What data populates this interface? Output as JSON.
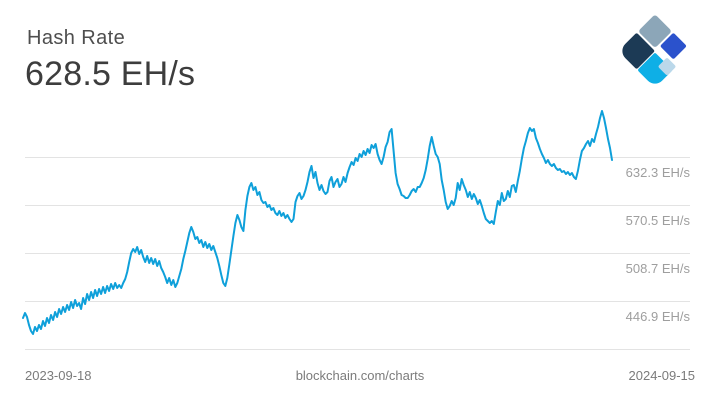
{
  "header": {
    "title": "Hash Rate",
    "value": "628.5 EH/s"
  },
  "logo": {
    "label": "blockchain-com-logo",
    "tiles": [
      {
        "key": "slate",
        "color": "#8CA6B8"
      },
      {
        "key": "royal",
        "color": "#2B52CC"
      },
      {
        "key": "navy",
        "color": "#1C3A55"
      },
      {
        "key": "cyan",
        "color": "#0EAFE6"
      },
      {
        "key": "pale",
        "color": "#BBD8EA"
      }
    ]
  },
  "footer": {
    "start_date": "2023-09-18",
    "watermark": "blockchain.com/charts",
    "end_date": "2024-09-15"
  },
  "chart_data": {
    "type": "line",
    "title": "Hash Rate",
    "unit": "EH/s",
    "current_value": 628.5,
    "x_start": "2023-09-18",
    "x_end": "2024-09-15",
    "ylim": [
      385.1,
      697.0
    ],
    "grid_on": true,
    "legend_position": "none",
    "gridlines": [
      632.3,
      570.5,
      508.7,
      446.9,
      385.1
    ],
    "y_axis_labels": [
      "632.3 EH/s",
      "570.5 EH/s",
      "508.7 EH/s",
      "446.9 EH/s"
    ],
    "line_color": "#0FA0DA",
    "grid_color": "#E3E3E3",
    "values": [
      425.0,
      431.5,
      426.3,
      416.0,
      408.3,
      404.4,
      413.4,
      408.3,
      416.0,
      410.9,
      421.2,
      414.7,
      425.0,
      418.6,
      428.9,
      422.4,
      432.7,
      426.3,
      436.6,
      430.2,
      439.2,
      432.7,
      441.8,
      435.3,
      445.6,
      437.9,
      448.2,
      440.5,
      444.3,
      436.6,
      450.8,
      443.0,
      455.9,
      448.2,
      458.5,
      450.8,
      461.1,
      453.3,
      462.4,
      455.9,
      464.9,
      457.2,
      466.2,
      459.8,
      468.8,
      462.4,
      470.1,
      463.6,
      467.5,
      463.6,
      470.1,
      475.2,
      484.2,
      497.1,
      508.7,
      513.9,
      510.0,
      516.4,
      507.4,
      512.6,
      503.6,
      497.1,
      504.8,
      495.8,
      502.3,
      494.5,
      501.0,
      492.0,
      498.4,
      489.4,
      484.2,
      477.8,
      470.1,
      476.5,
      467.5,
      473.9,
      464.9,
      470.1,
      479.1,
      488.1,
      501.0,
      511.3,
      522.9,
      534.5,
      542.2,
      535.7,
      526.7,
      529.3,
      521.6,
      525.4,
      516.4,
      522.9,
      515.1,
      520.3,
      512.6,
      517.7,
      510.0,
      502.3,
      492.0,
      480.4,
      470.1,
      466.2,
      476.5,
      494.5,
      512.6,
      530.6,
      547.3,
      557.6,
      551.2,
      541.9,
      537.0,
      564.1,
      582.1,
      593.7,
      598.8,
      589.8,
      593.7,
      583.4,
      587.2,
      576.9,
      573.1,
      574.4,
      567.9,
      570.5,
      564.1,
      566.6,
      560.2,
      557.6,
      562.8,
      556.3,
      560.2,
      553.8,
      557.6,
      552.5,
      548.6,
      552.5,
      574.4,
      582.1,
      586.0,
      578.2,
      582.1,
      589.8,
      600.1,
      613.0,
      620.7,
      605.3,
      613.0,
      598.8,
      589.8,
      596.3,
      588.5,
      584.7,
      587.2,
      601.4,
      606.6,
      593.7,
      600.1,
      604.0,
      593.7,
      597.5,
      606.6,
      600.1,
      611.7,
      619.4,
      625.9,
      622.0,
      631.0,
      627.2,
      636.2,
      632.3,
      640.0,
      634.9,
      642.6,
      637.5,
      647.8,
      643.9,
      649.0,
      636.2,
      628.4,
      623.3,
      632.3,
      645.2,
      651.6,
      664.5,
      668.4,
      640.0,
      611.7,
      597.5,
      591.1,
      583.4,
      582.1,
      579.5,
      579.5,
      583.4,
      588.5,
      591.1,
      587.2,
      593.7,
      593.7,
      598.8,
      605.3,
      615.6,
      629.7,
      646.5,
      658.1,
      646.5,
      636.2,
      632.3,
      623.3,
      602.7,
      589.8,
      574.4,
      565.4,
      569.2,
      575.7,
      570.5,
      579.5,
      598.8,
      589.8,
      604.0,
      596.3,
      589.8,
      580.8,
      587.2,
      578.2,
      584.7,
      579.5,
      571.8,
      576.9,
      569.2,
      560.2,
      552.5,
      549.9,
      547.3,
      549.9,
      546.0,
      561.5,
      575.7,
      570.5,
      586.0,
      575.7,
      578.2,
      588.5,
      580.8,
      595.0,
      596.3,
      587.2,
      601.4,
      614.3,
      629.7,
      643.9,
      652.9,
      663.2,
      669.6,
      665.8,
      668.4,
      656.8,
      650.3,
      642.6,
      636.2,
      631.0,
      624.6,
      628.4,
      623.3,
      620.7,
      623.3,
      618.1,
      615.6,
      616.9,
      613.0,
      614.3,
      610.4,
      613.0,
      609.1,
      611.7,
      606.6,
      604.0,
      614.3,
      628.4,
      640.0,
      643.9,
      649.0,
      652.9,
      646.5,
      655.5,
      651.6,
      661.9,
      670.9,
      682.5,
      691.5,
      682.5,
      669.6,
      655.5,
      643.9,
      628.5
    ]
  }
}
